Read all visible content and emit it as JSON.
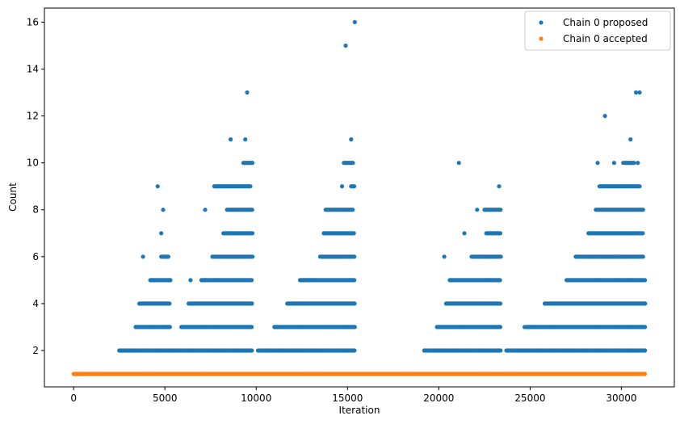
{
  "chart_data": {
    "type": "scatter",
    "xlabel": "Iteration",
    "ylabel": "Count",
    "xlim": [
      -1600,
      32900
    ],
    "ylim": [
      0.45,
      16.6
    ],
    "xticks": [
      0,
      5000,
      10000,
      15000,
      20000,
      25000,
      30000
    ],
    "yticks": [
      2,
      4,
      6,
      8,
      10,
      12,
      14,
      16
    ],
    "legend_position": "top-right",
    "grid": false,
    "series": [
      {
        "name": "Chain 0 proposed",
        "color": "#1f77b4",
        "marker": "circle",
        "x_range": [
          0,
          31300
        ],
        "bands": [
          {
            "value": 2,
            "segments": [
              [
                2500,
                9800
              ],
              [
                10100,
                15400
              ],
              [
                19200,
                23400
              ],
              [
                23700,
                31300
              ]
            ]
          },
          {
            "value": 3,
            "segments": [
              [
                3400,
                5300
              ],
              [
                5900,
                9800
              ],
              [
                11000,
                15400
              ],
              [
                19900,
                23400
              ],
              [
                24800,
                31300
              ]
            ]
          },
          {
            "value": 4,
            "segments": [
              [
                3600,
                5300
              ],
              [
                6300,
                9800
              ],
              [
                11700,
                15400
              ],
              [
                20400,
                23400
              ],
              [
                25800,
                31300
              ]
            ]
          },
          {
            "value": 5,
            "segments": [
              [
                4200,
                5300
              ],
              [
                7000,
                9800
              ],
              [
                12400,
                15400
              ],
              [
                20600,
                23400
              ],
              [
                27000,
                31300
              ]
            ]
          },
          {
            "value": 6,
            "segments": [
              [
                4800,
                5200
              ],
              [
                7600,
                9800
              ],
              [
                13500,
                15400
              ],
              [
                21800,
                23400
              ],
              [
                27500,
                31200
              ]
            ]
          },
          {
            "value": 7,
            "segments": [
              [
                8200,
                9800
              ],
              [
                13700,
                15400
              ],
              [
                22600,
                23400
              ],
              [
                28200,
                31200
              ]
            ]
          },
          {
            "value": 8,
            "segments": [
              [
                8400,
                9800
              ],
              [
                13800,
                15300
              ],
              [
                22500,
                23400
              ],
              [
                28600,
                31200
              ]
            ]
          },
          {
            "value": 9,
            "segments": [
              [
                7700,
                9700
              ],
              [
                15200,
                15400
              ],
              [
                28800,
                31000
              ]
            ]
          },
          {
            "value": 10,
            "segments": [
              [
                9300,
                9800
              ],
              [
                14800,
                15300
              ],
              [
                30200,
                30700
              ]
            ]
          }
        ],
        "sparse_points": [
          {
            "x": 3800,
            "y": 6
          },
          {
            "x": 4600,
            "y": 9
          },
          {
            "x": 4800,
            "y": 7
          },
          {
            "x": 4900,
            "y": 8
          },
          {
            "x": 5100,
            "y": 6
          },
          {
            "x": 6400,
            "y": 5
          },
          {
            "x": 7200,
            "y": 8
          },
          {
            "x": 8000,
            "y": 9
          },
          {
            "x": 8600,
            "y": 11
          },
          {
            "x": 9400,
            "y": 11
          },
          {
            "x": 9500,
            "y": 13
          },
          {
            "x": 14700,
            "y": 9
          },
          {
            "x": 14900,
            "y": 15
          },
          {
            "x": 15200,
            "y": 11
          },
          {
            "x": 15400,
            "y": 16
          },
          {
            "x": 11000,
            "y": 3
          },
          {
            "x": 12800,
            "y": 4
          },
          {
            "x": 20300,
            "y": 6
          },
          {
            "x": 21100,
            "y": 10
          },
          {
            "x": 21400,
            "y": 7
          },
          {
            "x": 23300,
            "y": 9
          },
          {
            "x": 22100,
            "y": 8
          },
          {
            "x": 24700,
            "y": 3
          },
          {
            "x": 25200,
            "y": 3
          },
          {
            "x": 28700,
            "y": 10
          },
          {
            "x": 29100,
            "y": 12
          },
          {
            "x": 29600,
            "y": 10
          },
          {
            "x": 30100,
            "y": 10
          },
          {
            "x": 30500,
            "y": 11
          },
          {
            "x": 30800,
            "y": 13
          },
          {
            "x": 31000,
            "y": 13
          },
          {
            "x": 30900,
            "y": 10
          }
        ]
      },
      {
        "name": "Chain 0 accepted",
        "color": "#ff7f0e",
        "marker": "circle",
        "bands": [
          {
            "value": 1,
            "segments": [
              [
                0,
                31300
              ]
            ]
          }
        ],
        "sparse_points": []
      }
    ]
  }
}
